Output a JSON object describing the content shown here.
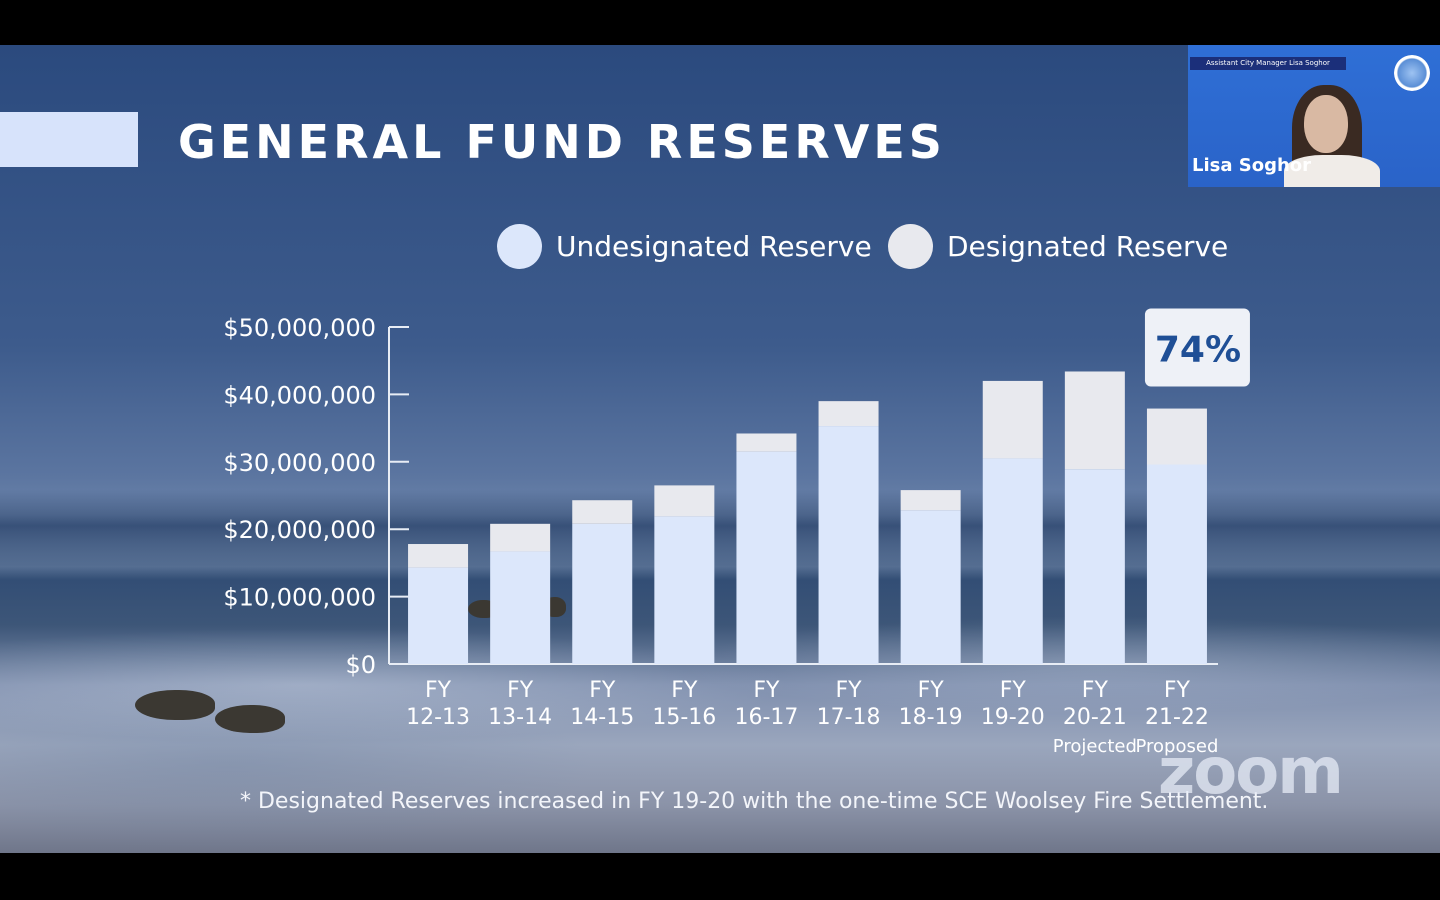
{
  "slide": {
    "title": "GENERAL FUND RESERVES",
    "footnote": "* Designated Reserves increased in FY 19-20 with the one-time SCE Woolsey Fire Settlement.",
    "watermark": "zoom"
  },
  "video_tile": {
    "banner": "Assistant City Manager Lisa Soghor",
    "name": "Lisa Soghor"
  },
  "colors": {
    "undesignated": "#dce7fb",
    "designated": "#e8e9ee",
    "badge_text": "#1f4f96"
  },
  "chart_data": {
    "type": "bar",
    "stacked": true,
    "categories": [
      [
        "FY",
        "12-13"
      ],
      [
        "FY",
        "13-14"
      ],
      [
        "FY",
        "14-15"
      ],
      [
        "FY",
        "15-16"
      ],
      [
        "FY",
        "16-17"
      ],
      [
        "FY",
        "17-18"
      ],
      [
        "FY",
        "18-19"
      ],
      [
        "FY",
        "19-20"
      ],
      [
        "FY",
        "20-21",
        "Projected"
      ],
      [
        "FY",
        "21-22",
        "Proposed"
      ]
    ],
    "series": [
      {
        "name": "Undesignated Reserve",
        "values": [
          14300000,
          16700000,
          20800000,
          21900000,
          31500000,
          35300000,
          22800000,
          30500000,
          28900000,
          29600000
        ]
      },
      {
        "name": "Designated Reserve",
        "values": [
          3500000,
          4100000,
          3500000,
          4600000,
          2700000,
          3700000,
          3000000,
          11500000,
          14500000,
          8300000
        ]
      }
    ],
    "yticks": [
      "$0",
      "$10,000,000",
      "$20,000,000",
      "$30,000,000",
      "$40,000,000",
      "$50,000,000"
    ],
    "ylim": [
      0,
      50000000
    ],
    "legend": "top",
    "grid": false,
    "annotation": {
      "text": "74%",
      "category_index": 9
    }
  }
}
